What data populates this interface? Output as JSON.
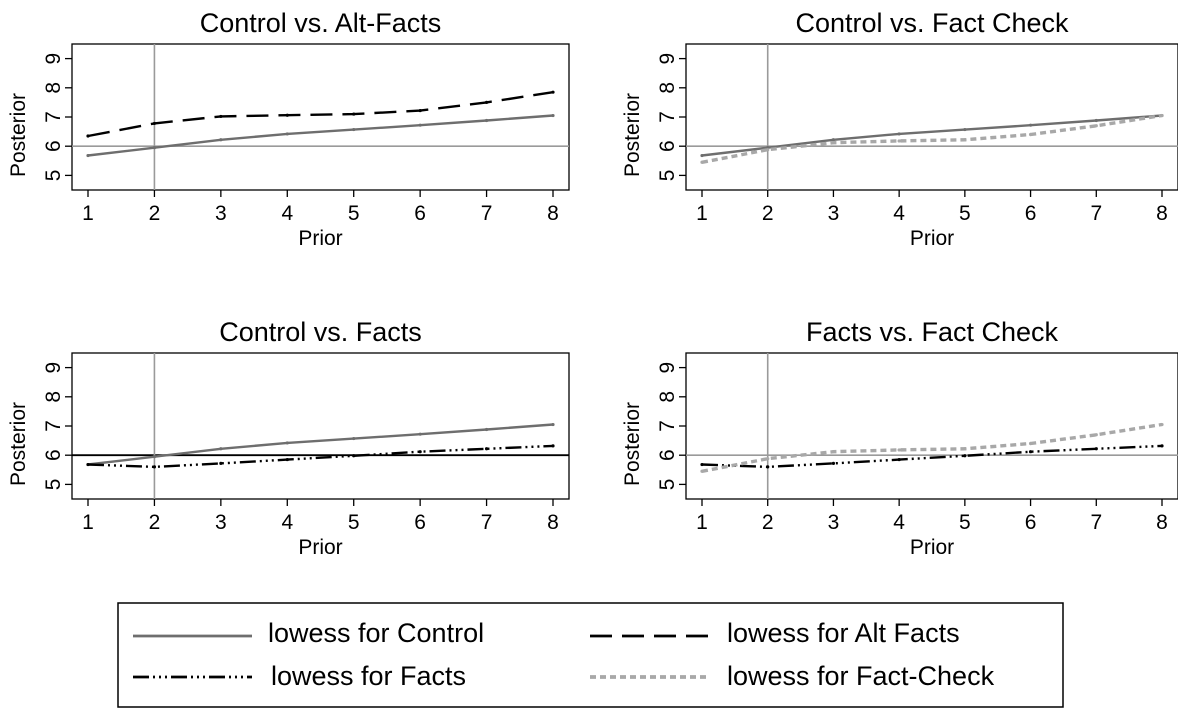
{
  "styles": {
    "control": {
      "color": "#6e6e6e",
      "dash": "",
      "width": 2.4
    },
    "alt_facts": {
      "color": "#000000",
      "dash": "22,10",
      "width": 2.4
    },
    "facts": {
      "color": "#000000",
      "dash": "16,4,2,4,2,4,2,4",
      "width": 2.4
    },
    "fact_check": {
      "color": "#a8a8a8",
      "dash": "6,4",
      "width": 3.4
    },
    "refline": "#9a9a9a",
    "refline_dark": "#000000"
  },
  "legend": {
    "items": [
      {
        "key": "control",
        "label": "lowess for Control"
      },
      {
        "key": "alt_facts",
        "label": "lowess for Alt Facts"
      },
      {
        "key": "facts",
        "label": "lowess for Facts"
      },
      {
        "key": "fact_check",
        "label": "lowess for Fact-Check"
      }
    ]
  },
  "chart_data": [
    {
      "type": "line",
      "title": "Control vs. Alt-Facts",
      "xlabel": "Prior",
      "ylabel": "Posterior",
      "xlim": [
        1,
        8
      ],
      "ylim": [
        4.5,
        9.5
      ],
      "xticks": [
        "1",
        "2",
        "3",
        "4",
        "5",
        "6",
        "7",
        "8"
      ],
      "yticks": [
        "5",
        "6",
        "7",
        "8",
        "9"
      ],
      "refline_x": 2,
      "refline_y": 6,
      "refline_y_dark": false,
      "grid": false,
      "x": [
        1,
        2,
        3,
        4,
        5,
        6,
        7,
        8
      ],
      "series": [
        {
          "key": "control",
          "values": [
            5.68,
            5.95,
            6.22,
            6.42,
            6.57,
            6.72,
            6.88,
            7.05
          ]
        },
        {
          "key": "alt_facts",
          "values": [
            6.35,
            6.78,
            7.02,
            7.06,
            7.1,
            7.22,
            7.5,
            7.85
          ]
        }
      ]
    },
    {
      "type": "line",
      "title": "Control vs. Fact Check",
      "xlabel": "Prior",
      "ylabel": "Posterior",
      "xlim": [
        1,
        8
      ],
      "ylim": [
        4.5,
        9.5
      ],
      "xticks": [
        "1",
        "2",
        "3",
        "4",
        "5",
        "6",
        "7",
        "8"
      ],
      "yticks": [
        "5",
        "6",
        "7",
        "8",
        "9"
      ],
      "refline_x": 2,
      "refline_y": 6,
      "refline_y_dark": false,
      "grid": false,
      "x": [
        1,
        2,
        3,
        4,
        5,
        6,
        7,
        8
      ],
      "series": [
        {
          "key": "control",
          "values": [
            5.68,
            5.95,
            6.22,
            6.42,
            6.57,
            6.72,
            6.88,
            7.05
          ]
        },
        {
          "key": "fact_check",
          "values": [
            5.45,
            5.88,
            6.12,
            6.18,
            6.22,
            6.4,
            6.7,
            7.05
          ]
        }
      ]
    },
    {
      "type": "line",
      "title": "Control vs. Facts",
      "xlabel": "Prior",
      "ylabel": "Posterior",
      "xlim": [
        1,
        8
      ],
      "ylim": [
        4.5,
        9.5
      ],
      "xticks": [
        "1",
        "2",
        "3",
        "4",
        "5",
        "6",
        "7",
        "8"
      ],
      "yticks": [
        "5",
        "6",
        "7",
        "8",
        "9"
      ],
      "refline_x": 2,
      "refline_y": 6,
      "refline_y_dark": true,
      "grid": false,
      "x": [
        1,
        2,
        3,
        4,
        5,
        6,
        7,
        8
      ],
      "series": [
        {
          "key": "control",
          "values": [
            5.68,
            5.95,
            6.22,
            6.42,
            6.57,
            6.72,
            6.88,
            7.05
          ]
        },
        {
          "key": "facts",
          "values": [
            5.68,
            5.6,
            5.72,
            5.85,
            5.98,
            6.12,
            6.22,
            6.32
          ]
        }
      ]
    },
    {
      "type": "line",
      "title": "Facts vs. Fact Check",
      "xlabel": "Prior",
      "ylabel": "Posterior",
      "xlim": [
        1,
        8
      ],
      "ylim": [
        4.5,
        9.5
      ],
      "xticks": [
        "1",
        "2",
        "3",
        "4",
        "5",
        "6",
        "7",
        "8"
      ],
      "yticks": [
        "5",
        "6",
        "7",
        "8",
        "9"
      ],
      "refline_x": 2,
      "refline_y": 6,
      "refline_y_dark": false,
      "grid": false,
      "x": [
        1,
        2,
        3,
        4,
        5,
        6,
        7,
        8
      ],
      "series": [
        {
          "key": "facts",
          "values": [
            5.68,
            5.6,
            5.72,
            5.85,
            5.98,
            6.12,
            6.22,
            6.32
          ]
        },
        {
          "key": "fact_check",
          "values": [
            5.45,
            5.88,
            6.12,
            6.18,
            6.22,
            6.4,
            6.7,
            7.05
          ]
        }
      ]
    }
  ]
}
